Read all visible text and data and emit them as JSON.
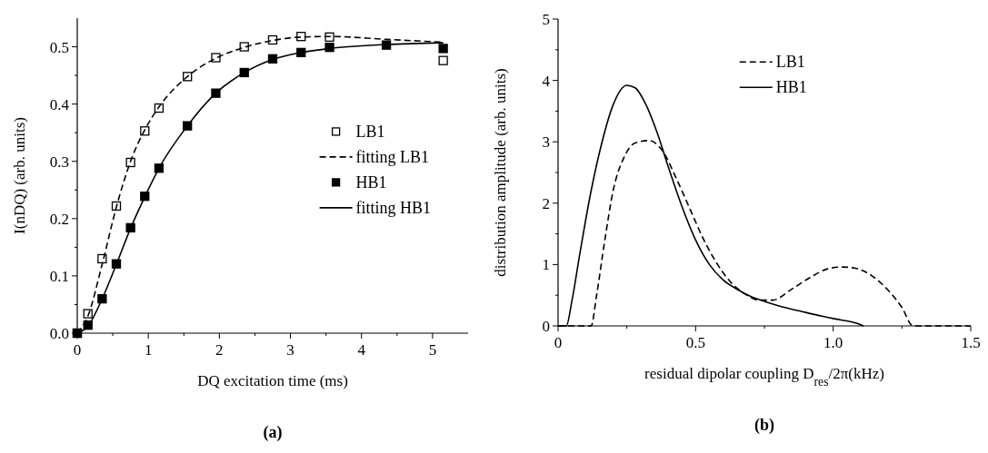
{
  "chart_data": [
    {
      "type": "scatter",
      "xlabel": "DQ excitation time (ms)",
      "ylabel": "I(nDQ)  (arb. units)",
      "annotations": [
        "(a)"
      ],
      "xlim": [
        0,
        5.5
      ],
      "xticks": [
        0,
        1,
        2,
        3,
        4,
        5
      ],
      "ylim": [
        0,
        0.55
      ],
      "yticks": [
        {
          "value": 0,
          "label": "0.0"
        },
        {
          "value": 0.1,
          "label": "0.1"
        },
        {
          "value": 0.2,
          "label": "0.2"
        },
        {
          "value": 0.3,
          "label": "0.3"
        },
        {
          "value": 0.4,
          "label": "0.4"
        },
        {
          "value": 0.5,
          "label": "0.5"
        }
      ],
      "grid": false,
      "legend": "right",
      "series": [
        {
          "name": "LB1",
          "marker": "square",
          "color": "#ffffff",
          "x": [
            0,
            0.15,
            0.35,
            0.55,
            0.75,
            0.95,
            1.15,
            1.55,
            1.95,
            2.35,
            2.75,
            3.15,
            3.55,
            5.15
          ],
          "values": [
            0,
            0.034,
            0.13,
            0.222,
            0.298,
            0.353,
            0.393,
            0.448,
            0.481,
            0.5,
            0.512,
            0.518,
            0.517,
            0.476
          ]
        },
        {
          "name": "fitting LB1",
          "type": "line",
          "line_style": "dashed",
          "color": "#000000",
          "x": [
            0,
            0.15,
            0.35,
            0.55,
            0.75,
            0.95,
            1.15,
            1.55,
            1.95,
            2.35,
            2.75,
            3.15,
            3.55,
            4.35,
            5.15
          ],
          "values": [
            0,
            0.03,
            0.12,
            0.22,
            0.3,
            0.355,
            0.395,
            0.448,
            0.48,
            0.499,
            0.511,
            0.517,
            0.518,
            0.513,
            0.508
          ]
        },
        {
          "name": "HB1",
          "marker": "square",
          "color": "#000000",
          "x": [
            0,
            0.15,
            0.35,
            0.55,
            0.75,
            0.95,
            1.15,
            1.55,
            1.95,
            2.35,
            2.75,
            3.15,
            3.55,
            4.35,
            5.15
          ],
          "values": [
            0,
            0.014,
            0.06,
            0.121,
            0.184,
            0.239,
            0.288,
            0.362,
            0.419,
            0.455,
            0.479,
            0.49,
            0.499,
            0.503,
            0.497
          ]
        },
        {
          "name": "fitting HB1",
          "type": "line",
          "line_style": "solid",
          "color": "#000000",
          "x": [
            0,
            0.15,
            0.35,
            0.55,
            0.75,
            0.95,
            1.15,
            1.55,
            1.95,
            2.35,
            2.75,
            3.15,
            3.55,
            4.35,
            5.15
          ],
          "values": [
            0,
            0.012,
            0.06,
            0.12,
            0.183,
            0.238,
            0.288,
            0.362,
            0.419,
            0.455,
            0.478,
            0.49,
            0.497,
            0.504,
            0.507
          ]
        }
      ]
    },
    {
      "type": "line",
      "xlabel": "residual dipolar coupling D$_{res}$/2π(kHz)",
      "ylabel": "distribution amplitude (arb. units)",
      "annotations": [
        "(b)"
      ],
      "xlim": [
        0,
        1.5
      ],
      "xticks": [
        0,
        0.5,
        {
          "value": 1,
          "label": "1.0"
        },
        1.5
      ],
      "ylim": [
        0,
        5
      ],
      "yticks": [
        0,
        1,
        2,
        3,
        4,
        5
      ],
      "grid": false,
      "legend": "top",
      "series": [
        {
          "name": "LB1",
          "line_style": "dashed",
          "color": "#000000",
          "x": [
            0,
            0.12,
            0.14,
            0.17,
            0.2,
            0.24,
            0.28,
            0.33,
            0.38,
            0.43,
            0.48,
            0.53,
            0.58,
            0.63,
            0.68,
            0.73,
            0.78,
            0.85,
            0.92,
            0.98,
            1.03,
            1.08,
            1.14,
            1.2,
            1.25,
            1.29,
            1.5
          ],
          "values": [
            0,
            0,
            0.5,
            1.4,
            2.2,
            2.75,
            2.98,
            3.02,
            2.85,
            2.4,
            1.9,
            1.4,
            1,
            0.7,
            0.52,
            0.42,
            0.42,
            0.6,
            0.8,
            0.93,
            0.96,
            0.94,
            0.82,
            0.58,
            0.3,
            0,
            0
          ]
        },
        {
          "name": "HB1",
          "line_style": "solid",
          "color": "#000000",
          "x": [
            0,
            0.03,
            0.05,
            0.08,
            0.12,
            0.16,
            0.2,
            0.25,
            0.28,
            0.32,
            0.36,
            0.4,
            0.45,
            0.5,
            0.55,
            0.6,
            0.65,
            0.7,
            0.75,
            0.8,
            0.9,
            1,
            1.1,
            1.11
          ],
          "values": [
            0,
            0,
            0.4,
            1.2,
            2.2,
            3,
            3.6,
            3.92,
            3.88,
            3.6,
            3.15,
            2.6,
            1.95,
            1.4,
            1,
            0.75,
            0.6,
            0.48,
            0.4,
            0.33,
            0.22,
            0.12,
            0.02,
            0
          ]
        }
      ]
    }
  ]
}
